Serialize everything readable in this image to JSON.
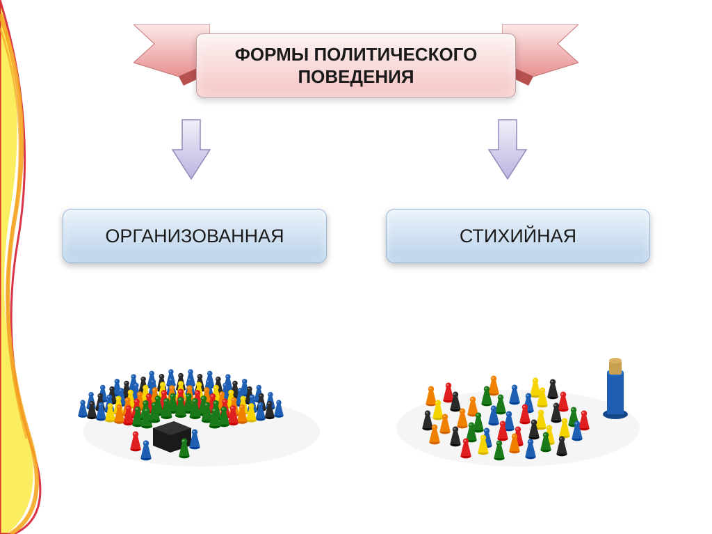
{
  "title": "ФОРМЫ ПОЛИТИЧЕСКОГО ПОВЕДЕНИЯ",
  "categories": {
    "left": "ОРГАНИЗОВАННАЯ",
    "right": "СТИХИЙНАЯ"
  },
  "colors": {
    "title_bg_top": "#fdf3f3",
    "title_bg_bottom": "#f5c4c4",
    "title_text": "#1a1a1a",
    "box_bg_top": "#eaf2fa",
    "box_bg_bottom": "#b9d2ea",
    "box_text": "#1a1a1a",
    "arrow_top": "#f0f0fa",
    "arrow_bottom": "#bcb4e0",
    "arrow_stroke": "#9088b8",
    "ribbon_tail_light": "#fce8e8",
    "ribbon_tail_dark": "#e89090",
    "decoration_orange": "#f5a623",
    "decoration_red": "#d0021b",
    "decoration_yellow": "#f8e71c"
  },
  "illustrations": {
    "organized": {
      "description": "Game pawns arranged in semicircle rows by color facing a podium",
      "arc_colors": [
        "#1e5fb4",
        "#2a2a2a",
        "#1e5fb4",
        "#f5d400",
        "#f08000",
        "#e02020",
        "#1a7a1a",
        "#1a7a1a"
      ],
      "podium_color": "#1a1a1a",
      "speakers": [
        "#e02020",
        "#1e5fb4",
        "#1a7a1a",
        "#1e5fb4"
      ]
    },
    "chaotic": {
      "description": "Game pawns scattered randomly, mixed colors, with a tall cylinder figure",
      "pawn_colors": [
        "#e02020",
        "#1e5fb4",
        "#1a7a1a",
        "#f08000",
        "#f5d400",
        "#2a2a2a"
      ],
      "tower_color": "#1e5fb4",
      "tower_top": "#c9a050"
    }
  }
}
